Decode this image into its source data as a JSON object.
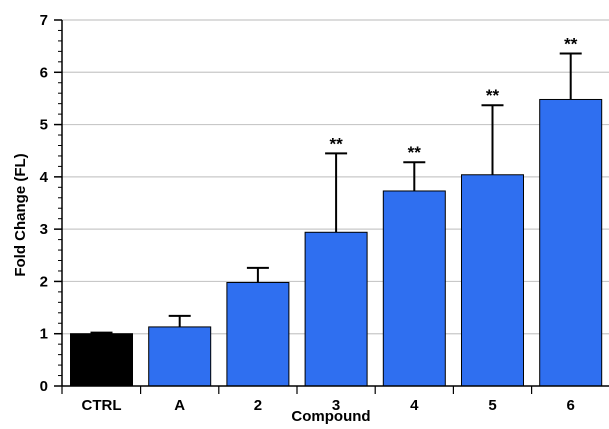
{
  "chart_data": {
    "type": "bar",
    "title": "",
    "xlabel": "Compound",
    "ylabel": "Fold Change (FL)",
    "ylim": [
      0,
      7
    ],
    "yticks": [
      "0",
      "1",
      "2",
      "3",
      "4",
      "5",
      "6",
      "7"
    ],
    "minor_ticks_per_major": 5,
    "grid": true,
    "categories": [
      "CTRL",
      "A",
      "2",
      "3",
      "4",
      "5",
      "6"
    ],
    "values": [
      1.0,
      1.13,
      1.98,
      2.94,
      3.73,
      4.04,
      5.48
    ],
    "error_upper": [
      0.02,
      0.21,
      0.28,
      1.51,
      0.55,
      1.33,
      0.88
    ],
    "significance": [
      "",
      "",
      "",
      "**",
      "**",
      "**",
      "**"
    ],
    "bar_colors": [
      "#000000",
      "#2f6ff0",
      "#2f6ff0",
      "#2f6ff0",
      "#2f6ff0",
      "#2f6ff0",
      "#2f6ff0"
    ]
  }
}
